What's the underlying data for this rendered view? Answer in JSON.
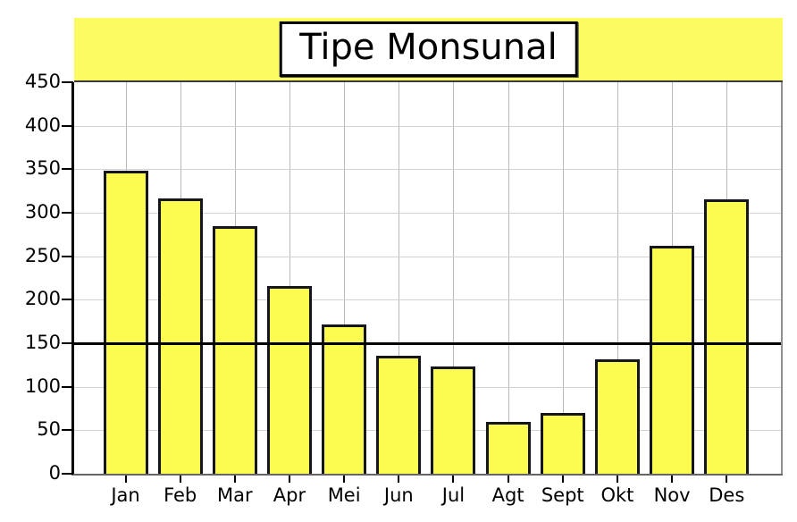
{
  "chart_data": {
    "type": "bar",
    "title": "Tipe Monsunal",
    "categories": [
      "Jan",
      "Feb",
      "Mar",
      "Apr",
      "Mei",
      "Jun",
      "Jul",
      "Agt",
      "Sept",
      "Okt",
      "Nov",
      "Des"
    ],
    "values": [
      348,
      316,
      285,
      216,
      172,
      136,
      123,
      60,
      70,
      132,
      262,
      315
    ],
    "xlabel": "",
    "ylabel": "",
    "ylim": [
      0,
      450
    ],
    "ytick_step": 50,
    "ytick_labels": [
      "0",
      "50",
      "100",
      "150",
      "200",
      "250",
      "300",
      "350",
      "400",
      "450"
    ],
    "grid": true,
    "legend": "none",
    "reference_line": {
      "value": 150,
      "color": "#000000"
    },
    "colors": {
      "bar_fill": "#FCFC50",
      "bar_border": "#15151E",
      "title_band": "#FBFB62",
      "title_box_bg": "#FFFFFF",
      "title_box_border": "#000000",
      "vgrid": "#B8B8B8",
      "hgrid": "#D2D2D2",
      "axis_left": "#000000",
      "axis_bottom": "#666666",
      "axis_right": "#909090",
      "axis_top": "#3A3A3A"
    }
  }
}
